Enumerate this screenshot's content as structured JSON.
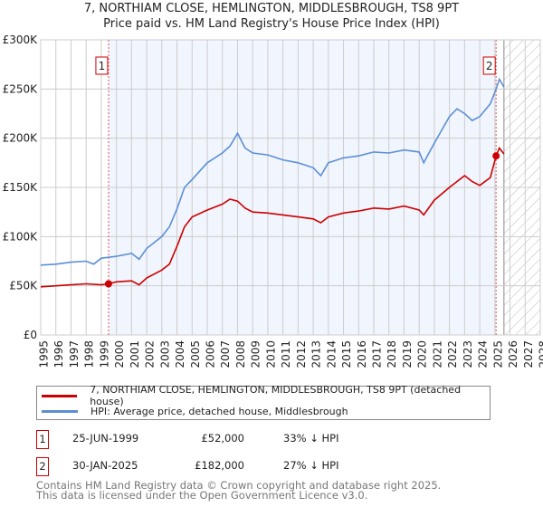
{
  "chart_data": {
    "type": "line",
    "title": "7, NORTHIAM CLOSE, HEMLINGTON, MIDDLESBROUGH, TS8 9PT",
    "subtitle": "Price paid vs. HM Land Registry's House Price Index (HPI)",
    "xlim": [
      1995,
      2028
    ],
    "ylim": [
      0,
      300000
    ],
    "y_ticks": [
      {
        "v": 0,
        "label": "£0"
      },
      {
        "v": 50000,
        "label": "£50K"
      },
      {
        "v": 100000,
        "label": "£100K"
      },
      {
        "v": 150000,
        "label": "£150K"
      },
      {
        "v": 200000,
        "label": "£200K"
      },
      {
        "v": 250000,
        "label": "£250K"
      },
      {
        "v": 300000,
        "label": "£300K"
      }
    ],
    "x_ticks": [
      "1995",
      "1996",
      "1997",
      "1998",
      "1999",
      "2000",
      "2001",
      "2002",
      "2003",
      "2004",
      "2005",
      "2006",
      "2007",
      "2008",
      "2009",
      "2010",
      "2011",
      "2012",
      "2013",
      "2014",
      "2015",
      "2016",
      "2017",
      "2018",
      "2019",
      "2020",
      "2021",
      "2022",
      "2023",
      "2024",
      "2025",
      "2026",
      "2027",
      "2028"
    ],
    "grid": true,
    "series": [
      {
        "name": "7, NORTHIAM CLOSE, HEMLINGTON, MIDDLESBROUGH, TS8 9PT (detached house)",
        "color": "#cc0000",
        "x": [
          1995,
          1996,
          1997,
          1998,
          1999,
          1999.48,
          2000,
          2001,
          2001.5,
          2002,
          2003,
          2003.5,
          2004,
          2004.5,
          2005,
          2006,
          2007,
          2007.5,
          2008,
          2008.5,
          2009,
          2010,
          2011,
          2012,
          2013,
          2013.5,
          2014,
          2015,
          2016,
          2017,
          2018,
          2019,
          2020,
          2020.3,
          2021,
          2022,
          2022.5,
          2023,
          2023.5,
          2024,
          2024.7,
          2025.08,
          2025.3,
          2025.6
        ],
        "y": [
          49000,
          50000,
          51000,
          52000,
          51000,
          52000,
          54000,
          55000,
          51000,
          58000,
          66000,
          72000,
          90000,
          110000,
          120000,
          127000,
          133000,
          138000,
          136000,
          129000,
          125000,
          124000,
          122000,
          120000,
          118000,
          114000,
          120000,
          124000,
          126000,
          129000,
          128000,
          131000,
          127000,
          122000,
          137000,
          150000,
          156000,
          162000,
          156000,
          152000,
          160000,
          182000,
          190000,
          184000
        ]
      },
      {
        "name": "HPI: Average price, detached house, Middlesbrough",
        "color": "#5b8fd6",
        "x": [
          1995,
          1996,
          1997,
          1998,
          1998.5,
          1999,
          2000,
          2001,
          2001.5,
          2002,
          2003,
          2003.5,
          2004,
          2004.5,
          2005,
          2006,
          2007,
          2007.5,
          2008,
          2008.5,
          2009,
          2010,
          2011,
          2012,
          2013,
          2013.5,
          2014,
          2015,
          2016,
          2017,
          2018,
          2019,
          2020,
          2020.3,
          2021,
          2022,
          2022.5,
          2023,
          2023.5,
          2024,
          2024.7,
          2025.08,
          2025.3,
          2025.6
        ],
        "y": [
          71000,
          72000,
          74000,
          75000,
          72000,
          78000,
          80000,
          83000,
          77000,
          88000,
          100000,
          110000,
          128000,
          150000,
          158000,
          175000,
          185000,
          192000,
          205000,
          190000,
          185000,
          183000,
          178000,
          175000,
          170000,
          162000,
          175000,
          180000,
          182000,
          186000,
          185000,
          188000,
          186000,
          175000,
          195000,
          222000,
          230000,
          225000,
          218000,
          222000,
          235000,
          250000,
          260000,
          252000
        ]
      }
    ],
    "legend": "bottom",
    "annotations": [
      {
        "label": "1",
        "x": 1999.48,
        "y": 52000
      },
      {
        "label": "2",
        "x": 2025.08,
        "y": 182000
      }
    ],
    "shaded_range": [
      1999.48,
      2025.08
    ],
    "hatched_after": 2025.6
  },
  "legend": {
    "red_label": "7, NORTHIAM CLOSE, HEMLINGTON, MIDDLESBROUGH, TS8 9PT (detached house)",
    "blue_label": "HPI: Average price, detached house, Middlesbrough"
  },
  "transactions": [
    {
      "num": "1",
      "date": "25-JUN-1999",
      "price": "£52,000",
      "hpi": "33% ↓ HPI"
    },
    {
      "num": "2",
      "date": "30-JAN-2025",
      "price": "£182,000",
      "hpi": "27% ↓ HPI"
    }
  ],
  "footer": {
    "line1": "Contains HM Land Registry data © Crown copyright and database right 2025.",
    "line2": "This data is licensed under the Open Government Licence v3.0."
  }
}
